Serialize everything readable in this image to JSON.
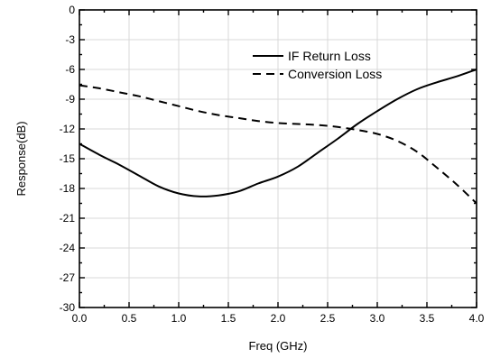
{
  "chart_data": {
    "type": "line",
    "title": "",
    "xlabel": "Freq (GHz)",
    "ylabel": "Response(dB)",
    "xlim": [
      0.0,
      4.0
    ],
    "ylim": [
      -30,
      0
    ],
    "x_ticks": [
      "0.0",
      "0.5",
      "1.0",
      "1.5",
      "2.0",
      "2.5",
      "3.0",
      "3.5",
      "4.0"
    ],
    "y_ticks": [
      "0",
      "-3",
      "-6",
      "-9",
      "-12",
      "-15",
      "-18",
      "-21",
      "-24",
      "-27",
      "-30"
    ],
    "grid": true,
    "legend_position": "top-right",
    "series": [
      {
        "name": "IF Return Loss",
        "line_style": "solid",
        "color": "#000000",
        "x": [
          0.0,
          0.2,
          0.4,
          0.6,
          0.8,
          1.0,
          1.2,
          1.4,
          1.6,
          1.8,
          2.0,
          2.2,
          2.4,
          2.6,
          2.8,
          3.0,
          3.2,
          3.4,
          3.6,
          3.8,
          4.0
        ],
        "y": [
          -13.5,
          -14.6,
          -15.6,
          -16.7,
          -17.8,
          -18.5,
          -18.8,
          -18.7,
          -18.3,
          -17.5,
          -16.8,
          -15.8,
          -14.4,
          -13.0,
          -11.5,
          -10.2,
          -9.0,
          -8.0,
          -7.3,
          -6.7,
          -6.0
        ]
      },
      {
        "name": "Conversion Loss",
        "line_style": "dashed",
        "color": "#000000",
        "x": [
          0.0,
          0.2,
          0.4,
          0.6,
          0.8,
          1.0,
          1.2,
          1.4,
          1.6,
          1.8,
          2.0,
          2.2,
          2.4,
          2.6,
          2.8,
          3.0,
          3.2,
          3.4,
          3.6,
          3.8,
          4.0
        ],
        "y": [
          -7.6,
          -7.9,
          -8.3,
          -8.7,
          -9.2,
          -9.7,
          -10.2,
          -10.6,
          -10.9,
          -11.2,
          -11.4,
          -11.5,
          -11.6,
          -11.8,
          -12.1,
          -12.5,
          -13.2,
          -14.3,
          -15.9,
          -17.6,
          -19.5
        ]
      }
    ]
  }
}
